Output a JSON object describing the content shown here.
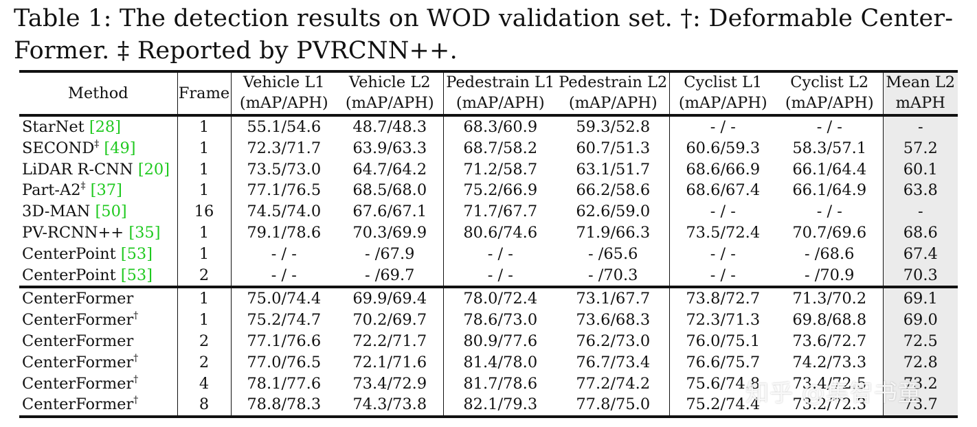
{
  "caption": {
    "line1": "Table 1: The detection results on WOD validation set. †: Deformable Center-",
    "line2": "Former. ‡ Reported by PVRCNN++."
  },
  "headers": {
    "method": "Method",
    "frame": "Frame",
    "cols": [
      {
        "top": "Vehicle L1",
        "bottom": "(mAP/APH)"
      },
      {
        "top": "Vehicle L2",
        "bottom": "(mAP/APH)"
      },
      {
        "top": "Pedestrain L1",
        "bottom": "(mAP/APH)"
      },
      {
        "top": "Pedestrain L2",
        "bottom": "(mAP/APH)"
      },
      {
        "top": "Cyclist L1",
        "bottom": "(mAP/APH)"
      },
      {
        "top": "Cyclist L2",
        "bottom": "(mAP/APH)"
      },
      {
        "top": "Mean L2",
        "bottom": "mAPH"
      }
    ]
  },
  "rows_prior": [
    {
      "name": "StarNet ",
      "sup": "",
      "ref": "[28]",
      "frame": "1",
      "v1": "55.1/54.6",
      "v2": "48.7/48.3",
      "p1": "68.3/60.9",
      "p2": "59.3/52.8",
      "c1": "- / -",
      "c2": "- / -",
      "mean": "-"
    },
    {
      "name": "SECOND",
      "sup": "‡",
      "ref": "[49]",
      "frame": "1",
      "v1": "72.3/71.7",
      "v2": "63.9/63.3",
      "p1": "68.7/58.2",
      "p2": "60.7/51.3",
      "c1": "60.6/59.3",
      "c2": "58.3/57.1",
      "mean": "57.2"
    },
    {
      "name": "LiDAR R-CNN ",
      "sup": "",
      "ref": "[20]",
      "frame": "1",
      "v1": "73.5/73.0",
      "v2": "64.7/64.2",
      "p1": "71.2/58.7",
      "p2": "63.1/51.7",
      "c1": "68.6/66.9",
      "c2": "66.1/64.4",
      "mean": "60.1"
    },
    {
      "name": "Part-A2",
      "sup": "‡",
      "ref": "[37]",
      "frame": "1",
      "v1": "77.1/76.5",
      "v2": "68.5/68.0",
      "p1": "75.2/66.9",
      "p2": "66.2/58.6",
      "c1": "68.6/67.4",
      "c2": "66.1/64.9",
      "mean": "63.8"
    },
    {
      "name": "3D-MAN ",
      "sup": "",
      "ref": "[50]",
      "frame": "16",
      "v1": "74.5/74.0",
      "v2": "67.6/67.1",
      "p1": "71.7/67.7",
      "p2": "62.6/59.0",
      "c1": "- / -",
      "c2": "- / -",
      "mean": "-"
    },
    {
      "name": "PV-RCNN++ ",
      "sup": "",
      "ref": "[35]",
      "frame": "1",
      "v1": "79.1/78.6",
      "v2": "70.3/69.9",
      "p1": "80.6/74.6",
      "p2": "71.9/66.3",
      "c1": "73.5/72.4",
      "c2": "70.7/69.6",
      "mean": "68.6"
    },
    {
      "name": "CenterPoint ",
      "sup": "",
      "ref": "[53]",
      "frame": "1",
      "v1": "- / -",
      "v2": "- /67.9",
      "p1": "- / -",
      "p2": "- /65.6",
      "c1": "- / -",
      "c2": "- /68.6",
      "mean": "67.4"
    },
    {
      "name": "CenterPoint ",
      "sup": "",
      "ref": "[53]",
      "frame": "2",
      "v1": "- / -",
      "v2": "- /69.7",
      "p1": "- / -",
      "p2": "- /70.3",
      "c1": "- / -",
      "c2": "- /70.9",
      "mean": "70.3"
    }
  ],
  "rows_ours": [
    {
      "name": "CenterFormer",
      "sup": "",
      "frame": "1",
      "v1": "75.0/74.4",
      "v2": "69.9/69.4",
      "p1": "78.0/72.4",
      "p2": "73.1/67.7",
      "c1": "73.8/72.7",
      "c2": "71.3/70.2",
      "mean": "69.1"
    },
    {
      "name": "CenterFormer",
      "sup": "†",
      "frame": "1",
      "v1": "75.2/74.7",
      "v2": "70.2/69.7",
      "p1": "78.6/73.0",
      "p2": "73.6/68.3",
      "c1": "72.3/71.3",
      "c2": "69.8/68.8",
      "mean": "69.0"
    },
    {
      "name": "CenterFormer",
      "sup": "",
      "frame": "2",
      "v1": "77.1/76.6",
      "v2": "72.2/71.7",
      "p1": "80.9/77.6",
      "p2": "76.2/73.0",
      "c1": "76.0/75.1",
      "c2": "73.6/72.7",
      "mean": "72.5"
    },
    {
      "name": "CenterFormer",
      "sup": "†",
      "frame": "2",
      "v1": "77.0/76.5",
      "v2": "72.1/71.6",
      "p1": "81.4/78.0",
      "p2": "76.7/73.4",
      "c1": "76.6/75.7",
      "c2": "74.2/73.3",
      "mean": "72.8"
    },
    {
      "name": "CenterFormer",
      "sup": "†",
      "frame": "4",
      "v1": "78.1/77.6",
      "v2": "73.4/72.9",
      "p1": "81.7/78.6",
      "p2": "77.2/74.2",
      "c1": "75.6/74.8",
      "c2": "73.4/72.5",
      "mean": "73.2"
    },
    {
      "name": "CenterFormer",
      "sup": "†",
      "frame": "8",
      "v1": "78.8/78.3",
      "v2": "74.3/73.8",
      "p1": "82.1/79.3",
      "p2": "77.8/75.0",
      "c1": "75.2/74.4",
      "c2": "73.2/72.3",
      "mean": "73.7"
    }
  ],
  "watermark": "知乎 @集智书童",
  "colors": {
    "ref": "#1fc91f",
    "mean_bg": "#ebebeb"
  }
}
